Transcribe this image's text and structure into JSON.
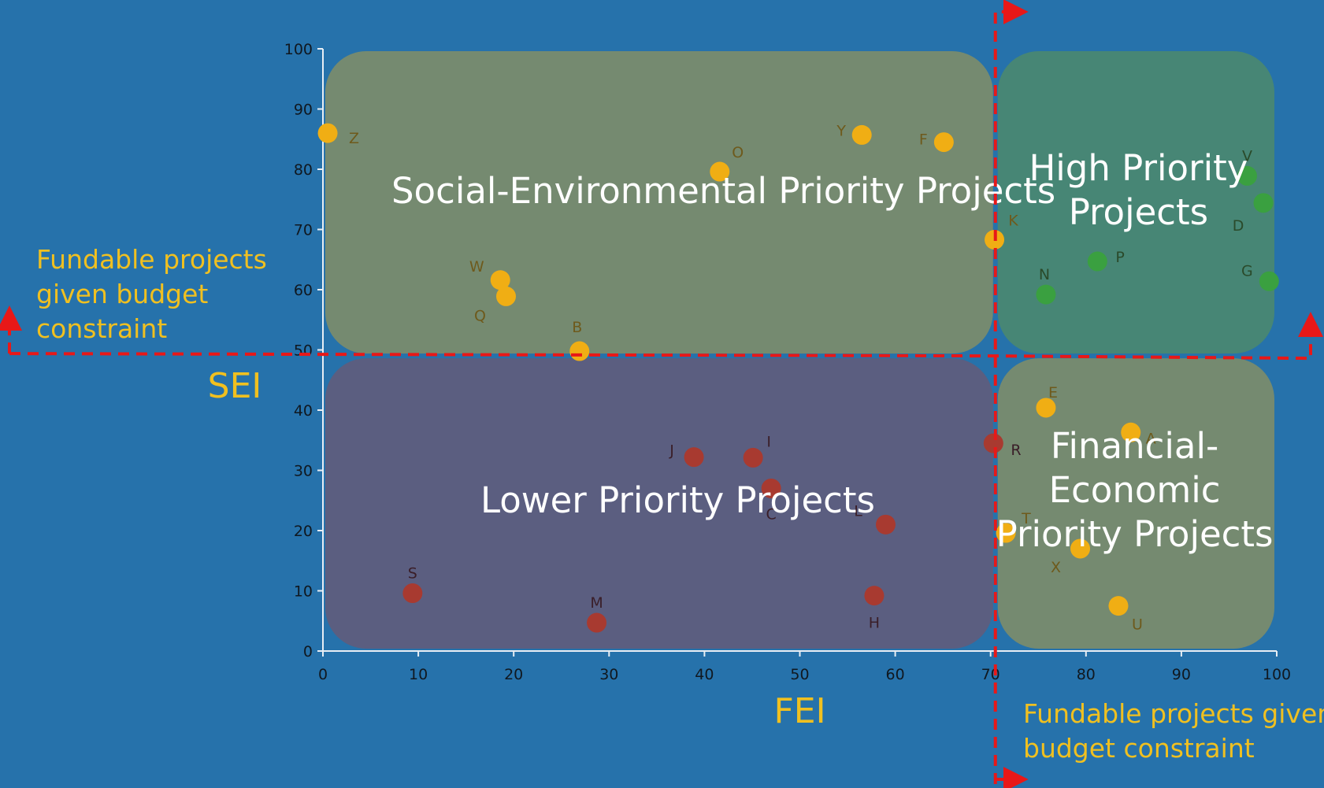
{
  "chart_data": {
    "type": "scatter",
    "xlabel": "FEI",
    "ylabel": "SEI",
    "xlim": [
      0,
      100
    ],
    "ylim": [
      0,
      100
    ],
    "xticks": [
      0,
      10,
      20,
      30,
      40,
      50,
      60,
      70,
      80,
      90,
      100
    ],
    "yticks": [
      0,
      10,
      20,
      30,
      40,
      50,
      60,
      70,
      80,
      90,
      100
    ],
    "grid": false,
    "thresholds": {
      "fei": 70.5,
      "sei": 49
    },
    "regions": [
      {
        "name": "Social-Environmental Priority Projects",
        "lines": [
          "Social-Environmental Priority Projects"
        ],
        "x": [
          0,
          70.5
        ],
        "y": [
          49,
          100
        ],
        "color": "#7c8c6a"
      },
      {
        "name": "High Priority Projects",
        "lines": [
          "High Priority",
          "Projects"
        ],
        "x": [
          70.5,
          100
        ],
        "y": [
          49,
          100
        ],
        "color": "#4a8870"
      },
      {
        "name": "Lower Priority Projects",
        "lines": [
          "Lower Priority Projects"
        ],
        "x": [
          0,
          70.5
        ],
        "y": [
          0,
          49
        ],
        "color": "#5f5c7c"
      },
      {
        "name": "Financial-Economic Priority Projects",
        "lines": [
          "Financial-",
          "Economic",
          "Priority Projects"
        ],
        "x": [
          70.5,
          100
        ],
        "y": [
          0,
          49
        ],
        "color": "#7c8c6a"
      }
    ],
    "series": [
      {
        "category": "orange",
        "color": "#f0ae14",
        "label_color": "#6e5a1c",
        "points": [
          {
            "label": "Z",
            "x": 0.5,
            "y": 86
          },
          {
            "label": "O",
            "x": 41.6,
            "y": 79.6
          },
          {
            "label": "Y",
            "x": 56.5,
            "y": 85.7
          },
          {
            "label": "F",
            "x": 65.1,
            "y": 84.5
          },
          {
            "label": "K",
            "x": 70.4,
            "y": 68.3
          },
          {
            "label": "W",
            "x": 18.6,
            "y": 61.6
          },
          {
            "label": "Q",
            "x": 19.2,
            "y": 58.9
          },
          {
            "label": "B",
            "x": 26.9,
            "y": 49.8
          },
          {
            "label": "E",
            "x": 75.8,
            "y": 40.4
          },
          {
            "label": "A",
            "x": 84.7,
            "y": 36.3
          },
          {
            "label": "T",
            "x": 71.6,
            "y": 19.6
          },
          {
            "label": "X",
            "x": 79.4,
            "y": 17.0
          },
          {
            "label": "U",
            "x": 83.4,
            "y": 7.5
          }
        ]
      },
      {
        "category": "green",
        "color": "#3aa040",
        "label_color": "#2a4a2a",
        "points": [
          {
            "label": "V",
            "x": 96.9,
            "y": 78.9
          },
          {
            "label": "D",
            "x": 98.6,
            "y": 74.4
          },
          {
            "label": "P",
            "x": 81.2,
            "y": 64.7
          },
          {
            "label": "N",
            "x": 75.8,
            "y": 59.2
          },
          {
            "label": "G",
            "x": 99.2,
            "y": 61.4
          }
        ]
      },
      {
        "category": "red",
        "color": "#a83a30",
        "label_color": "#3a1e28",
        "points": [
          {
            "label": "J",
            "x": 38.9,
            "y": 32.2
          },
          {
            "label": "I",
            "x": 45.1,
            "y": 32.1
          },
          {
            "label": "C",
            "x": 47.0,
            "y": 27.0
          },
          {
            "label": "L",
            "x": 59.0,
            "y": 21.0
          },
          {
            "label": "R",
            "x": 70.3,
            "y": 34.5
          },
          {
            "label": "S",
            "x": 9.4,
            "y": 9.6
          },
          {
            "label": "M",
            "x": 28.7,
            "y": 4.7
          },
          {
            "label": "H",
            "x": 57.8,
            "y": 9.2
          }
        ]
      }
    ],
    "annotations": {
      "left": [
        "Fundable projects",
        "given budget",
        "constraint"
      ],
      "bottom": [
        "Fundable projects given",
        "budget constraint"
      ]
    }
  }
}
